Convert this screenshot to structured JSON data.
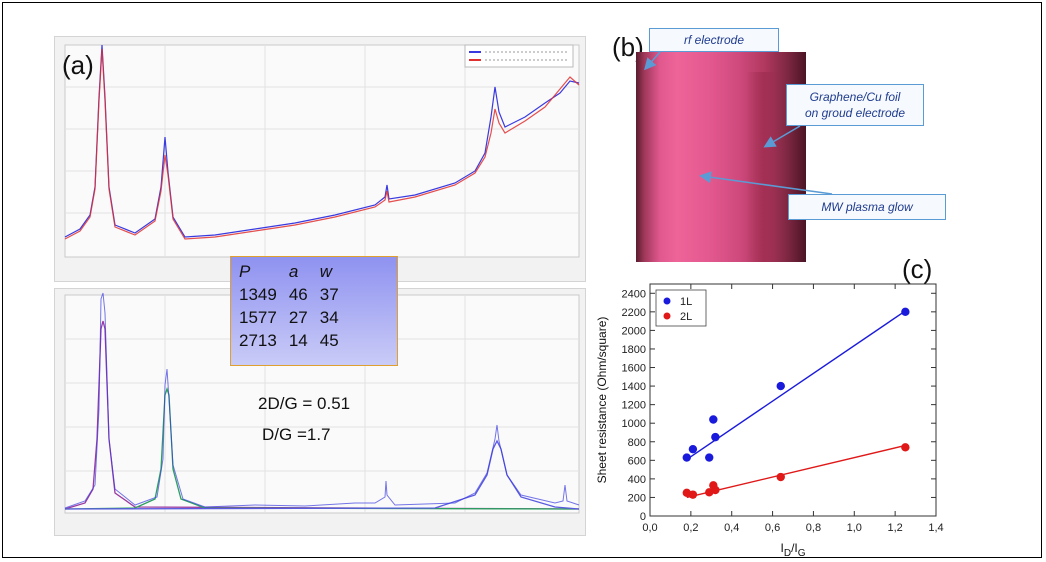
{
  "panel_labels": {
    "a": "(a)",
    "b": "(b)",
    "c": "(c)"
  },
  "fit_params": {
    "headers": [
      "P",
      "a",
      "w"
    ],
    "rows": [
      [
        "1349",
        "46",
        "37"
      ],
      [
        "1577",
        "27",
        "34"
      ],
      [
        "2713",
        "14",
        "45"
      ]
    ]
  },
  "ratios": {
    "two_d_g": "2D/G = 0.51",
    "d_g": "D/G =1.7"
  },
  "callouts": {
    "rf_electrode": "rf electrode",
    "graphene_line1": "Graphene/Cu foil",
    "graphene_line2": "on groud electrode",
    "plasma": "MW plasma glow"
  },
  "colors": {
    "series_1L": "#1a1adc",
    "series_2L": "#e01818",
    "callout_border": "#5b9bd5",
    "callout_text": "#1f3c8f"
  },
  "chart_data": [
    {
      "type": "line",
      "panel": "(a) top",
      "description_kind": "Raman spectrum",
      "series": [
        {
          "color": "#3a3ae0"
        },
        {
          "color": "#e03030"
        }
      ]
    },
    {
      "type": "line",
      "panel": "(a) bottom",
      "description_kind": "Raman spectrum peak fits",
      "series": [
        {
          "color": "#3a3ae0"
        },
        {
          "color": "#9a3aa0"
        },
        {
          "color": "#2aa060"
        }
      ]
    },
    {
      "type": "scatter",
      "panel": "(c)",
      "xlabel_main": "I",
      "xlabel_sub1": "D",
      "xlabel_mid": "/I",
      "xlabel_sub2": "G",
      "ylabel": "Sheet resistance (Ohm/square)",
      "xlim": [
        0.0,
        1.4
      ],
      "ylim": [
        0,
        2500
      ],
      "x_ticks": [
        "0,0",
        "0,2",
        "0,4",
        "0,6",
        "0,8",
        "1,0",
        "1,2",
        "1,4"
      ],
      "x_tick_values": [
        0.0,
        0.2,
        0.4,
        0.6,
        0.8,
        1.0,
        1.2,
        1.4
      ],
      "y_ticks": [
        "0",
        "200",
        "400",
        "600",
        "800",
        "1000",
        "1200",
        "1400",
        "1600",
        "1800",
        "2000",
        "2200",
        "2400"
      ],
      "y_tick_values": [
        0,
        200,
        400,
        600,
        800,
        1000,
        1200,
        1400,
        1600,
        1800,
        2000,
        2200,
        2400
      ],
      "legend_position": "top-left",
      "series": [
        {
          "name": "1L",
          "color": "#1a1adc",
          "points": [
            [
              0.18,
              630
            ],
            [
              0.21,
              720
            ],
            [
              0.29,
              630
            ],
            [
              0.31,
              1040
            ],
            [
              0.32,
              850
            ],
            [
              0.64,
              1400
            ],
            [
              1.25,
              2200
            ]
          ],
          "fit": [
            [
              0.18,
              610
            ],
            [
              1.25,
              2210
            ]
          ]
        },
        {
          "name": "2L",
          "color": "#e01818",
          "points": [
            [
              0.18,
              250
            ],
            [
              0.21,
              230
            ],
            [
              0.29,
              255
            ],
            [
              0.31,
              330
            ],
            [
              0.32,
              280
            ],
            [
              0.64,
              420
            ],
            [
              1.25,
              740
            ]
          ],
          "fit": [
            [
              0.18,
              200
            ],
            [
              1.25,
              760
            ]
          ]
        }
      ]
    }
  ]
}
